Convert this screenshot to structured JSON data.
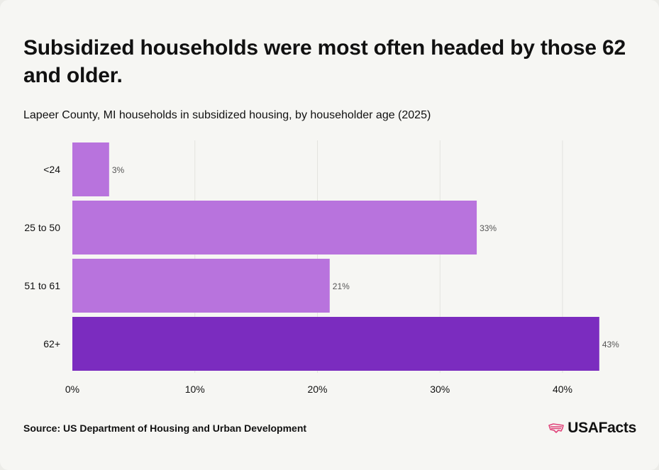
{
  "header": {
    "title": "Subsidized households were most often headed by those 62 and older.",
    "subtitle": "Lapeer County, MI households in subsidized housing, by householder age (2025)"
  },
  "footer": {
    "source": "Source: US Department of Housing and Urban Development",
    "brand": "USAFacts"
  },
  "colors": {
    "bar": "#b873dd",
    "highlight": "#7b2cbf",
    "grid": "#e3e3df",
    "text": "#111111",
    "label": "#555555",
    "brand_icon": "#e0457b"
  },
  "chart_data": {
    "type": "bar",
    "orientation": "horizontal",
    "categories": [
      "<24",
      "25 to 50",
      "51 to 61",
      "62+"
    ],
    "values": [
      3,
      33,
      21,
      43
    ],
    "value_labels": [
      "3%",
      "33%",
      "21%",
      "43%"
    ],
    "highlight_index": 3,
    "xlim": [
      0,
      40
    ],
    "x_ticks": [
      0,
      10,
      20,
      30,
      40
    ],
    "x_tick_labels": [
      "0%",
      "10%",
      "20%",
      "30%",
      "40%"
    ],
    "grid": true
  }
}
